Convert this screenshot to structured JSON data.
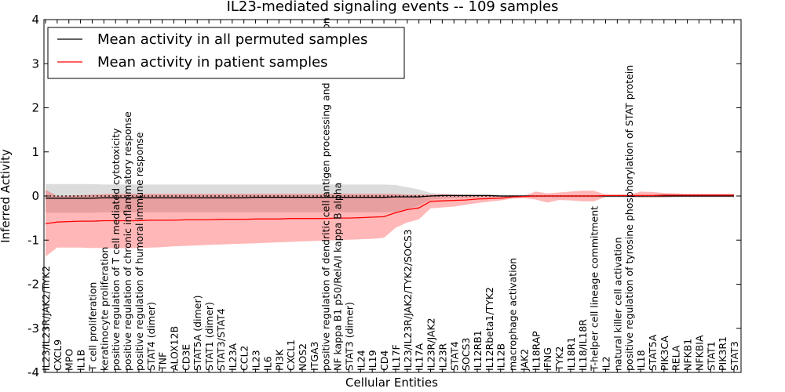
{
  "chart_data": {
    "type": "line",
    "title": "IL23-mediated signaling events -- 109 samples",
    "xlabel": "Cellular Entities",
    "ylabel": "Inferred Activity",
    "ylim": [
      -4,
      4
    ],
    "yticks": [
      -4,
      -3,
      -2,
      -1,
      0,
      1,
      2,
      3,
      4
    ],
    "grid": false,
    "legend_position": "top-left",
    "categories": [
      "IL23/IL23R/JAK2/TYK2",
      "CXCL9",
      "MPO",
      "IL1B",
      "T cell proliferation",
      "keratinocyte proliferation",
      "positive regulation of T cell mediated cytotoxicity",
      "positive regulation of chronic inflammatory response",
      "positive regulation of humoral immune response",
      "STAT4 (dimer)",
      "TNF",
      "ALOX12B",
      "CD3E",
      "STAT5A (dimer)",
      "STAT1 (dimer)",
      "STAT3/STAT4",
      "IL23A",
      "CCL2",
      "IL23",
      "IL6",
      "PI3K",
      "CXCL1",
      "NOS2",
      "ITGA3",
      "positive regulation of dendritic cell antigen processing and presentation",
      "NF kappa B1 p50/RelA/I kappa B alpha",
      "STAT3 (dimer)",
      "IL24",
      "IL19",
      "CD4",
      "IL17F",
      "IL23/IL23R/JAK2/TYK2/SOCS3",
      "IL17A",
      "IL23R/JAK2",
      "IL23R",
      "STAT4",
      "SOCS3",
      "IL12RB1",
      "IL12Rbeta1/TYK2",
      "IL12B",
      "macrophage activation",
      "JAK2",
      "IL18RAP",
      "IFNG",
      "TYK2",
      "IL18R1",
      "IL18/IL18R",
      "T-helper cell lineage commitment",
      "IL2",
      "natural killer cell activation",
      "positive regulation of tyrosine phosphorylation of STAT protein",
      "IL18",
      "STAT5A",
      "PIK3CA",
      "RELA",
      "NFKB1",
      "NFKBIA",
      "STAT1",
      "PIK3R1",
      "STAT3"
    ],
    "series": [
      {
        "name": "Mean activity in all permuted samples",
        "color": "#000000",
        "values": [
          -0.05,
          -0.05,
          -0.05,
          -0.05,
          -0.05,
          -0.04,
          -0.04,
          -0.04,
          -0.04,
          -0.04,
          -0.04,
          -0.04,
          -0.04,
          -0.04,
          -0.04,
          -0.04,
          -0.04,
          -0.04,
          -0.03,
          -0.03,
          -0.03,
          -0.03,
          -0.03,
          -0.03,
          -0.03,
          -0.03,
          -0.03,
          -0.03,
          -0.03,
          -0.03,
          -0.02,
          -0.02,
          -0.02,
          0.0,
          0.01,
          0.01,
          0.01,
          0.01,
          0.01,
          0.0,
          0.0,
          0.0,
          0.0,
          0.0,
          0.0,
          0.0,
          0.0,
          0.0,
          0.0,
          0.0,
          0.0,
          0.0,
          0.0,
          0.0,
          0.0,
          0.0,
          0.0,
          0.0,
          0.0,
          0.0
        ],
        "band_upper": [
          0.27,
          0.27,
          0.27,
          0.27,
          0.27,
          0.26,
          0.26,
          0.26,
          0.26,
          0.26,
          0.26,
          0.26,
          0.26,
          0.26,
          0.26,
          0.26,
          0.26,
          0.26,
          0.26,
          0.26,
          0.26,
          0.26,
          0.26,
          0.26,
          0.26,
          0.26,
          0.26,
          0.26,
          0.26,
          0.26,
          0.25,
          0.2,
          0.15,
          0.07,
          0.05,
          0.04,
          0.04,
          0.03,
          0.03,
          0.02,
          0.02,
          0.02,
          0.02,
          0.02,
          0.02,
          0.02,
          0.02,
          0.02,
          0.02,
          0.02,
          0.02,
          0.02,
          0.02,
          0.02,
          0.02,
          0.02,
          0.02,
          0.02,
          0.02,
          0.02
        ],
        "band_lower": [
          -0.38,
          -0.38,
          -0.38,
          -0.38,
          -0.38,
          -0.37,
          -0.37,
          -0.37,
          -0.37,
          -0.37,
          -0.37,
          -0.37,
          -0.37,
          -0.37,
          -0.37,
          -0.37,
          -0.37,
          -0.37,
          -0.37,
          -0.37,
          -0.37,
          -0.37,
          -0.37,
          -0.37,
          -0.37,
          -0.37,
          -0.37,
          -0.37,
          -0.37,
          -0.37,
          -0.36,
          -0.3,
          -0.22,
          -0.08,
          -0.06,
          -0.05,
          -0.05,
          -0.04,
          -0.04,
          -0.03,
          -0.03,
          -0.03,
          -0.03,
          -0.03,
          -0.03,
          -0.03,
          -0.03,
          -0.03,
          -0.03,
          -0.03,
          -0.03,
          -0.03,
          -0.03,
          -0.03,
          -0.03,
          -0.03,
          -0.03,
          -0.03,
          -0.03,
          -0.03
        ]
      },
      {
        "name": "Mean activity in patient samples",
        "color": "#ff0000",
        "values": [
          -0.63,
          -0.59,
          -0.58,
          -0.57,
          -0.57,
          -0.56,
          -0.56,
          -0.56,
          -0.56,
          -0.55,
          -0.55,
          -0.55,
          -0.54,
          -0.54,
          -0.54,
          -0.53,
          -0.53,
          -0.53,
          -0.52,
          -0.52,
          -0.52,
          -0.51,
          -0.51,
          -0.51,
          -0.51,
          -0.5,
          -0.5,
          -0.49,
          -0.48,
          -0.47,
          -0.38,
          -0.31,
          -0.27,
          -0.12,
          -0.11,
          -0.1,
          -0.09,
          -0.07,
          -0.06,
          -0.05,
          -0.02,
          -0.01,
          0.0,
          0.0,
          0.0,
          0.0,
          0.0,
          0.0,
          0.01,
          0.01,
          0.01,
          0.01,
          0.01,
          0.02,
          0.02,
          0.02,
          0.02,
          0.02,
          0.02,
          0.02
        ],
        "band_upper": [
          0.14,
          0.0,
          0.01,
          0.02,
          0.03,
          0.04,
          0.05,
          0.05,
          0.05,
          0.05,
          0.05,
          0.05,
          0.05,
          0.05,
          0.05,
          0.05,
          0.05,
          0.05,
          0.05,
          0.05,
          0.05,
          0.05,
          0.05,
          0.05,
          0.05,
          0.05,
          0.05,
          0.05,
          0.05,
          0.05,
          0.05,
          0.03,
          0.03,
          0.03,
          0.04,
          0.03,
          0.02,
          0.02,
          0.01,
          0.0,
          0.0,
          0.0,
          0.1,
          0.06,
          0.08,
          0.1,
          0.12,
          0.12,
          0.03,
          0.03,
          0.03,
          0.1,
          0.09,
          0.07,
          0.06,
          0.05,
          0.05,
          0.05,
          0.05,
          0.05
        ],
        "band_lower": [
          -1.37,
          -1.17,
          -1.17,
          -1.17,
          -1.18,
          -1.18,
          -1.19,
          -1.18,
          -1.18,
          -1.17,
          -1.16,
          -1.14,
          -1.13,
          -1.12,
          -1.11,
          -1.1,
          -1.09,
          -1.08,
          -1.07,
          -1.06,
          -1.05,
          -1.04,
          -1.03,
          -1.02,
          -1.01,
          -1.0,
          -0.99,
          -0.98,
          -0.97,
          -0.95,
          -0.72,
          -0.6,
          -0.53,
          -0.28,
          -0.26,
          -0.24,
          -0.2,
          -0.16,
          -0.13,
          -0.1,
          -0.06,
          -0.05,
          -0.08,
          -0.15,
          -0.09,
          -0.1,
          -0.12,
          -0.12,
          -0.02,
          -0.02,
          -0.02,
          -0.03,
          -0.03,
          -0.03,
          -0.02,
          -0.02,
          -0.02,
          -0.02,
          -0.02,
          -0.02
        ]
      }
    ]
  }
}
